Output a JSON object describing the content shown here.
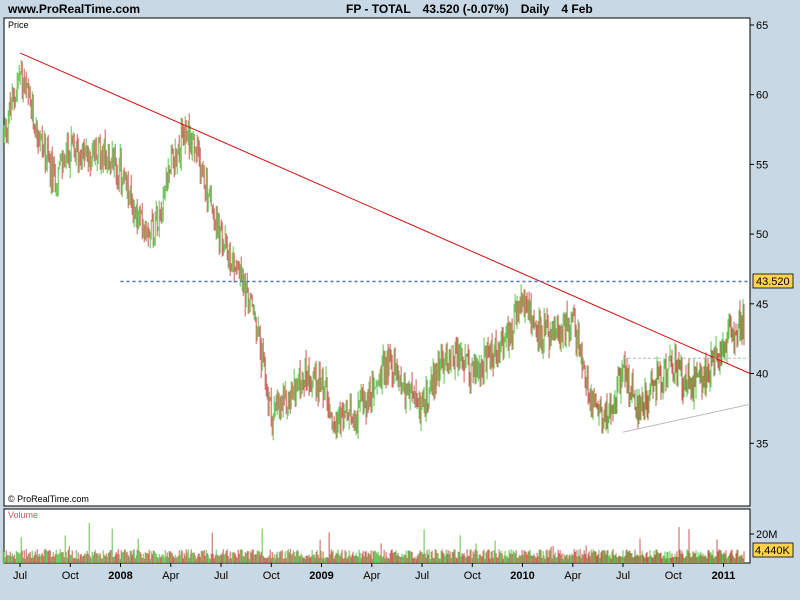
{
  "header": {
    "site": "www.ProRealTime.com",
    "instrument": "FP - TOTAL",
    "quote": "43.520 (-0.07%)",
    "timeframe": "Daily",
    "date": "4 Feb"
  },
  "price_panel": {
    "label": "Price",
    "copyright": "© ProRealTime.com",
    "last_price_badge": "43.520"
  },
  "volume_panel": {
    "label": "Volume",
    "last_volume_badge": "4,440K",
    "tick_label": "20M"
  },
  "colors": {
    "up": "#5fc24a",
    "down": "#c95a52",
    "trendline": "#cc1010",
    "support": "#4a78b8",
    "badge": "#ffd34d"
  },
  "chart_data": [
    {
      "type": "candlestick",
      "title": "FP - TOTAL",
      "ylabel": "Price",
      "ylim": [
        30.5,
        65.5
      ],
      "y_ticks": [
        35,
        40,
        45,
        50,
        55,
        60,
        65
      ],
      "x_ticks": [
        "Jul",
        "Oct",
        "2008",
        "Apr",
        "Jul",
        "Oct",
        "2009",
        "Apr",
        "Jul",
        "Oct",
        "2010",
        "Apr",
        "Jul",
        "Oct",
        "2011"
      ],
      "x_ticks_bold": [
        false,
        false,
        true,
        false,
        false,
        false,
        true,
        false,
        false,
        false,
        true,
        false,
        false,
        false,
        true
      ],
      "x": [
        "2007-06",
        "2007-07",
        "2007-08",
        "2007-09",
        "2007-10",
        "2007-11",
        "2007-12",
        "2008-01",
        "2008-02",
        "2008-03",
        "2008-04",
        "2008-05",
        "2008-06",
        "2008-07",
        "2008-08",
        "2008-09",
        "2008-10",
        "2008-11",
        "2008-12",
        "2009-01",
        "2009-02",
        "2009-03",
        "2009-04",
        "2009-05",
        "2009-06",
        "2009-07",
        "2009-08",
        "2009-09",
        "2009-10",
        "2009-11",
        "2009-12",
        "2010-01",
        "2010-02",
        "2010-03",
        "2010-04",
        "2010-05",
        "2010-06",
        "2010-07",
        "2010-08",
        "2010-09",
        "2010-10",
        "2010-11",
        "2010-12",
        "2011-01",
        "2011-02"
      ],
      "values": [
        57.0,
        61.5,
        57.5,
        54.0,
        56.0,
        55.5,
        56.0,
        54.5,
        51.0,
        50.5,
        55.0,
        57.5,
        54.0,
        49.5,
        47.5,
        44.0,
        37.0,
        38.0,
        40.0,
        39.5,
        36.5,
        37.0,
        38.5,
        41.0,
        39.0,
        37.5,
        40.5,
        41.5,
        40.0,
        41.0,
        42.5,
        45.0,
        43.0,
        42.5,
        44.0,
        38.5,
        37.0,
        40.0,
        37.5,
        39.5,
        40.5,
        39.0,
        40.0,
        42.0,
        43.52
      ],
      "last_value": 43.52,
      "last_change_pct": -0.07,
      "annotations": [
        {
          "type": "trendline",
          "from": [
            "2007-07",
            63.0
          ],
          "to": [
            "2011-02",
            40.0
          ]
        },
        {
          "type": "horizontal",
          "value": 46.6,
          "from": "2008-01",
          "to": "2011-02"
        },
        {
          "type": "horizontal",
          "value": 41.1,
          "from": "2010-07",
          "to": "2011-02"
        },
        {
          "type": "trendline",
          "from": [
            "2010-07",
            35.8
          ],
          "to": [
            "2011-02",
            37.8
          ]
        }
      ],
      "grid": false
    },
    {
      "type": "bar",
      "title": "Volume",
      "y_ticks_labels": [
        "20M"
      ],
      "last_value_label": "4,440K"
    }
  ]
}
